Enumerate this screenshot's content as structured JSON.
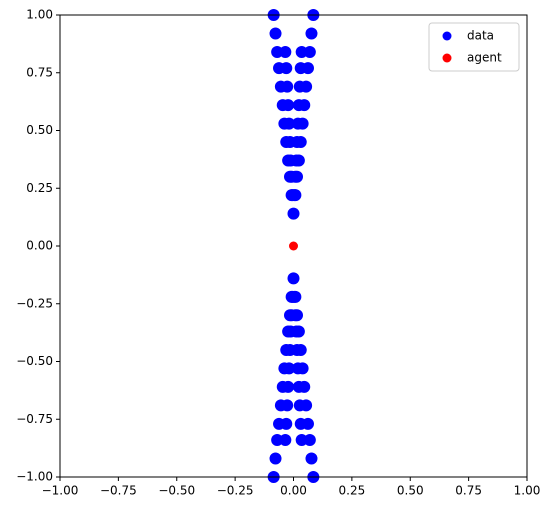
{
  "chart_data": {
    "type": "scatter",
    "series": [
      {
        "name": "data",
        "color": "#0000ff",
        "x": [
          0,
          0.008,
          0.015,
          0.023,
          0.031,
          0.039,
          0.046,
          0.054,
          0.062,
          0.07,
          0.077,
          0.085,
          -0.008,
          -0.015,
          -0.023,
          -0.031,
          -0.039,
          -0.046,
          -0.054,
          -0.062,
          -0.07,
          -0.077,
          -0.085,
          0.004,
          0.008,
          0.012,
          0.015,
          0.019,
          0.023,
          0.027,
          0.031,
          0.035,
          -0.004,
          -0.008,
          -0.012,
          -0.015,
          -0.019,
          -0.023,
          -0.027,
          -0.031,
          -0.035,
          0,
          0.008,
          0.015,
          0.023,
          0.031,
          0.039,
          0.046,
          0.054,
          0.062,
          0.07,
          0.077,
          0.085,
          -0.008,
          -0.015,
          -0.023,
          -0.031,
          -0.039,
          -0.046,
          -0.054,
          -0.062,
          -0.07,
          -0.077,
          -0.085,
          0.004,
          0.008,
          0.012,
          0.015,
          0.019,
          0.023,
          0.027,
          0.031,
          0.035,
          -0.004,
          -0.008,
          -0.012,
          -0.015,
          -0.019,
          -0.023,
          -0.027,
          -0.031,
          -0.035
        ],
        "y": [
          0.14,
          0.22,
          0.3,
          0.37,
          0.45,
          0.53,
          0.61,
          0.69,
          0.77,
          0.84,
          0.92,
          1.0,
          0.22,
          0.3,
          0.37,
          0.45,
          0.53,
          0.61,
          0.69,
          0.77,
          0.84,
          0.92,
          1.0,
          0.22,
          0.3,
          0.37,
          0.45,
          0.53,
          0.61,
          0.69,
          0.77,
          0.84,
          0.22,
          0.3,
          0.37,
          0.45,
          0.53,
          0.61,
          0.69,
          0.77,
          0.84,
          -0.14,
          -0.22,
          -0.3,
          -0.37,
          -0.45,
          -0.53,
          -0.61,
          -0.69,
          -0.77,
          -0.84,
          -0.92,
          -1.0,
          -0.22,
          -0.3,
          -0.37,
          -0.45,
          -0.53,
          -0.61,
          -0.69,
          -0.77,
          -0.84,
          -0.92,
          -1.0,
          -0.22,
          -0.3,
          -0.37,
          -0.45,
          -0.53,
          -0.61,
          -0.69,
          -0.77,
          -0.84,
          -0.22,
          -0.3,
          -0.37,
          -0.45,
          -0.53,
          -0.61,
          -0.69,
          -0.77,
          -0.84
        ]
      },
      {
        "name": "agent",
        "color": "#ff0000",
        "x": [
          0
        ],
        "y": [
          0
        ]
      }
    ],
    "xlim": [
      -1,
      1
    ],
    "ylim": [
      -1,
      1
    ],
    "xticks": [
      {
        "value": -1,
        "label": "−1.00"
      },
      {
        "value": -0.75,
        "label": "−0.75"
      },
      {
        "value": -0.5,
        "label": "−0.50"
      },
      {
        "value": -0.25,
        "label": "−0.25"
      },
      {
        "value": 0,
        "label": "0.00"
      },
      {
        "value": 0.25,
        "label": "0.25"
      },
      {
        "value": 0.5,
        "label": "0.50"
      },
      {
        "value": 0.75,
        "label": "0.75"
      },
      {
        "value": 1,
        "label": "1.00"
      }
    ],
    "yticks": [
      {
        "value": -1,
        "label": "−1.00"
      },
      {
        "value": -0.75,
        "label": "−0.75"
      },
      {
        "value": -0.5,
        "label": "−0.50"
      },
      {
        "value": -0.25,
        "label": "−0.25"
      },
      {
        "value": 0,
        "label": "0.00"
      },
      {
        "value": 0.25,
        "label": "0.25"
      },
      {
        "value": 0.5,
        "label": "0.50"
      },
      {
        "value": 0.75,
        "label": "0.75"
      },
      {
        "value": 1,
        "label": "1.00"
      }
    ],
    "legend": "upper right"
  }
}
